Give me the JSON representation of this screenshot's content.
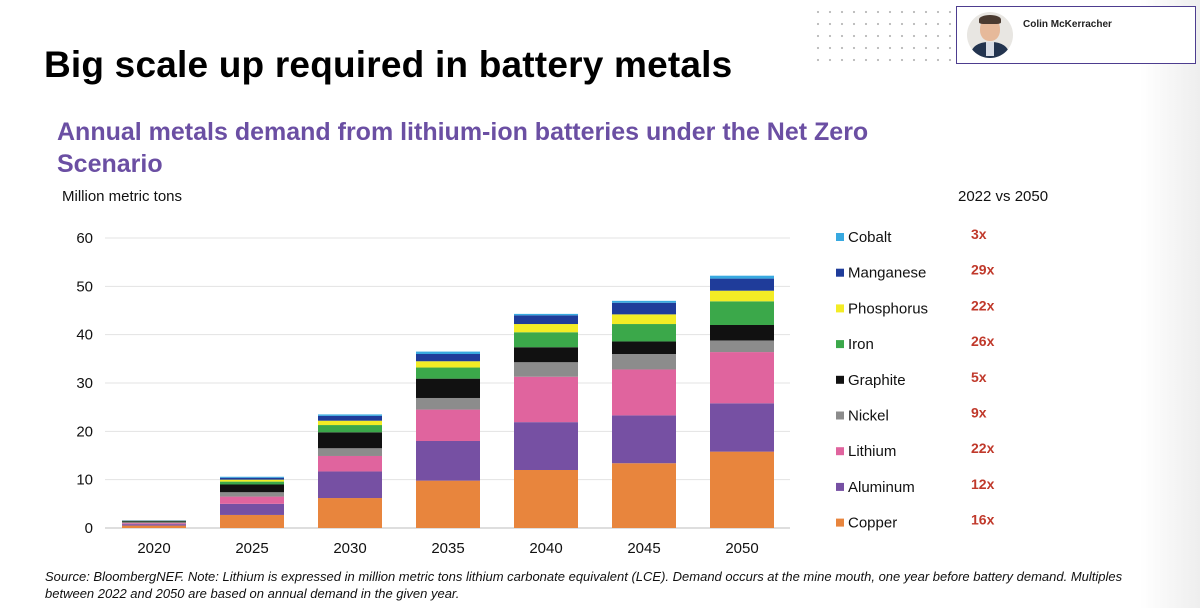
{
  "slide": {
    "title": "Big scale up required in battery metals",
    "speaker_name": "Colin McKerracher"
  },
  "multiples_header": "2022 vs 2050",
  "source_note": "Source: BloombergNEF. Note: Lithium is expressed in million metric tons lithium carbonate equivalent (LCE). Demand occurs at the mine mouth, one year before battery demand. Multiples between 2022 and 2050 are based on annual demand in the given year.",
  "chart_data": {
    "type": "bar",
    "stacked": true,
    "title": "Annual metals demand from lithium-ion batteries under the Net Zero Scenario",
    "ylabel": "Million metric tons",
    "xlabel": "",
    "ylim": [
      0,
      60
    ],
    "yticks": [
      0,
      10,
      20,
      30,
      40,
      50,
      60
    ],
    "grid": true,
    "legend_position": "right",
    "categories": [
      "2020",
      "2025",
      "2030",
      "2035",
      "2040",
      "2045",
      "2050"
    ],
    "series": [
      {
        "name": "Copper",
        "color": "#e8853d",
        "multiple": "16x",
        "values": [
          0.5,
          2.7,
          6.2,
          9.8,
          12.0,
          13.4,
          15.8
        ]
      },
      {
        "name": "Aluminum",
        "color": "#7650a3",
        "multiple": "12x",
        "values": [
          0.3,
          2.3,
          5.5,
          8.2,
          9.9,
          9.9,
          10.0
        ]
      },
      {
        "name": "Lithium",
        "color": "#e0649e",
        "multiple": "22x",
        "values": [
          0.2,
          1.5,
          3.2,
          6.5,
          9.4,
          9.5,
          10.6
        ]
      },
      {
        "name": "Nickel",
        "color": "#8c8c8c",
        "multiple": "9x",
        "values": [
          0.2,
          0.9,
          1.6,
          2.4,
          3.0,
          3.2,
          2.4
        ]
      },
      {
        "name": "Graphite",
        "color": "#111111",
        "multiple": "5x",
        "values": [
          0.2,
          1.6,
          3.3,
          4.0,
          3.1,
          2.6,
          3.2
        ]
      },
      {
        "name": "Iron",
        "color": "#3ba84a",
        "multiple": "26x",
        "values": [
          0.05,
          0.6,
          1.5,
          2.3,
          3.1,
          3.6,
          4.9
        ]
      },
      {
        "name": "Phosphorus",
        "color": "#f3ec25",
        "multiple": "22x",
        "values": [
          0.05,
          0.4,
          0.9,
          1.3,
          1.7,
          2.0,
          2.2
        ]
      },
      {
        "name": "Manganese",
        "color": "#1f3c9a",
        "multiple": "29x",
        "values": [
          0.05,
          0.4,
          1.0,
          1.5,
          1.8,
          2.4,
          2.5
        ]
      },
      {
        "name": "Cobalt",
        "color": "#38a9e0",
        "multiple": "3x",
        "values": [
          0.05,
          0.2,
          0.3,
          0.5,
          0.3,
          0.4,
          0.6
        ]
      }
    ]
  }
}
